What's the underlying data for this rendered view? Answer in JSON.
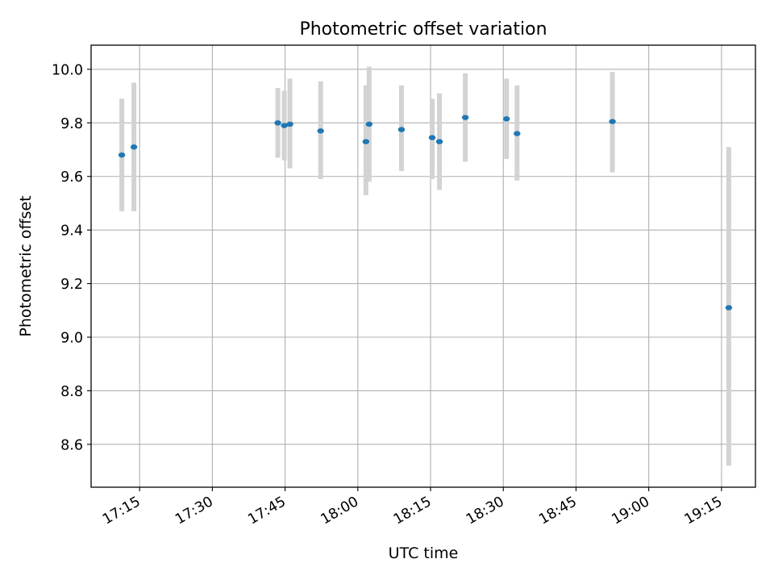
{
  "chart_data": {
    "type": "scatter",
    "title": "Photometric offset variation",
    "xlabel": "UTC time",
    "ylabel": "Photometric offset",
    "x_tick_labels": [
      "17:15",
      "17:30",
      "17:45",
      "18:00",
      "18:15",
      "18:30",
      "18:45",
      "19:00",
      "19:15"
    ],
    "x_ticks": [
      "17:15",
      "17:30",
      "17:45",
      "18:00",
      "18:15",
      "18:30",
      "18:45",
      "19:00",
      "19:15"
    ],
    "xlim": [
      "17:05",
      "19:22"
    ],
    "y_ticks": [
      8.6,
      8.8,
      9.0,
      9.2,
      9.4,
      9.6,
      9.8,
      10.0
    ],
    "y_tick_labels": [
      "8.6",
      "8.8",
      "9.0",
      "9.2",
      "9.4",
      "9.6",
      "9.8",
      "10.0"
    ],
    "ylim": [
      8.44,
      10.09
    ],
    "grid": true,
    "marker_color": "#1f77b4",
    "errorbar_color": "#d3d3d3",
    "series": [
      {
        "points": [
          {
            "x": "17:11:20",
            "y": 9.68,
            "ylow": 9.47,
            "yhigh": 9.89
          },
          {
            "x": "17:13:50",
            "y": 9.71,
            "ylow": 9.47,
            "yhigh": 9.95
          },
          {
            "x": "17:43:30",
            "y": 9.8,
            "ylow": 9.67,
            "yhigh": 9.93
          },
          {
            "x": "17:44:50",
            "y": 9.79,
            "ylow": 9.66,
            "yhigh": 9.92
          },
          {
            "x": "17:46:00",
            "y": 9.795,
            "ylow": 9.63,
            "yhigh": 9.965
          },
          {
            "x": "17:52:20",
            "y": 9.77,
            "ylow": 9.59,
            "yhigh": 9.955
          },
          {
            "x": "18:01:40",
            "y": 9.73,
            "ylow": 9.53,
            "yhigh": 9.94
          },
          {
            "x": "18:02:20",
            "y": 9.795,
            "ylow": 9.58,
            "yhigh": 10.01
          },
          {
            "x": "18:09:00",
            "y": 9.775,
            "ylow": 9.62,
            "yhigh": 9.94
          },
          {
            "x": "18:15:20",
            "y": 9.745,
            "ylow": 9.59,
            "yhigh": 9.89
          },
          {
            "x": "18:16:50",
            "y": 9.73,
            "ylow": 9.55,
            "yhigh": 9.91
          },
          {
            "x": "18:22:10",
            "y": 9.82,
            "ylow": 9.655,
            "yhigh": 9.985
          },
          {
            "x": "18:30:40",
            "y": 9.815,
            "ylow": 9.665,
            "yhigh": 9.965
          },
          {
            "x": "18:32:50",
            "y": 9.76,
            "ylow": 9.585,
            "yhigh": 9.94
          },
          {
            "x": "18:52:30",
            "y": 9.805,
            "ylow": 9.615,
            "yhigh": 9.99
          },
          {
            "x": "19:16:30",
            "y": 9.11,
            "ylow": 8.52,
            "yhigh": 9.71
          }
        ]
      }
    ]
  }
}
